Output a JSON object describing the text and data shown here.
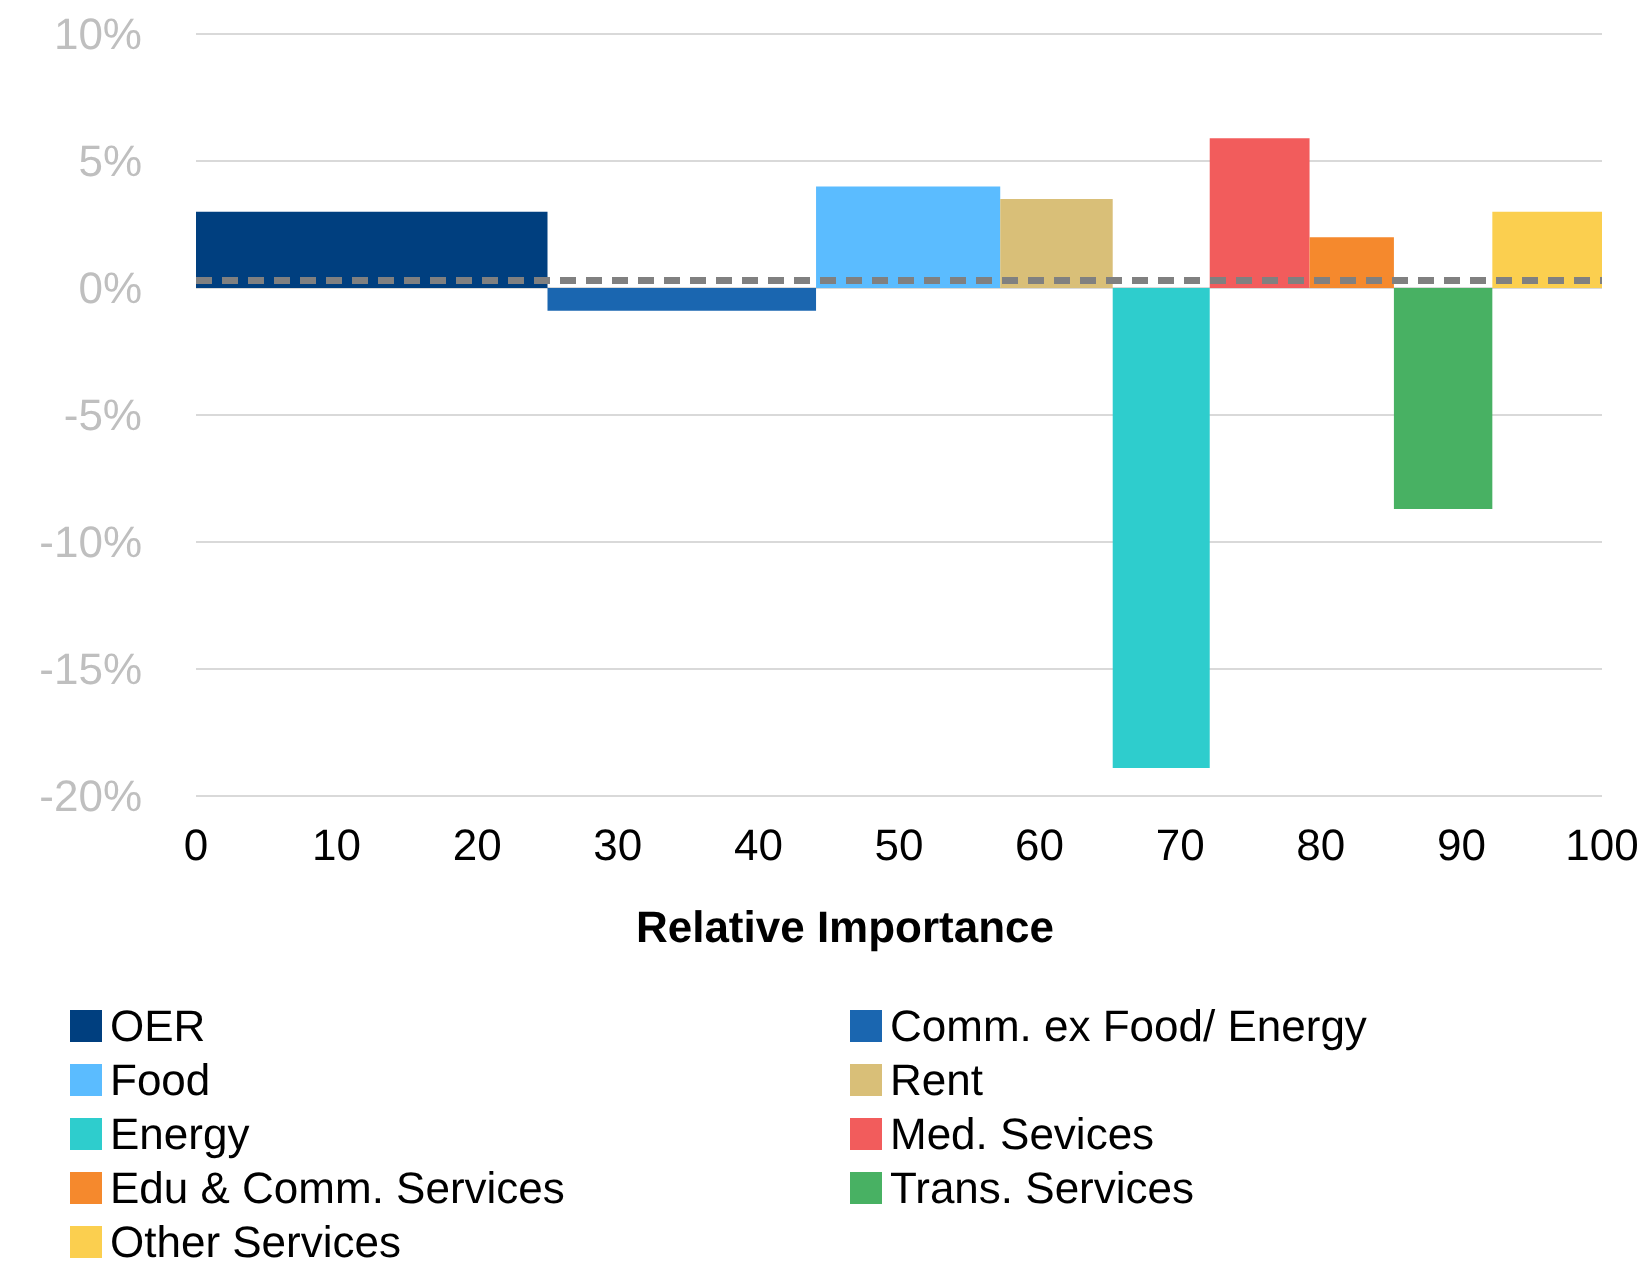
{
  "chart_data": {
    "type": "area",
    "xlabel": "Relative Importance",
    "xlim": [
      0,
      100
    ],
    "xticks": [
      0,
      10,
      20,
      30,
      40,
      50,
      60,
      70,
      80,
      90,
      100
    ],
    "ylim": [
      -20,
      10
    ],
    "yticks": [
      {
        "value": -20,
        "label": "-20%"
      },
      {
        "value": -15,
        "label": "-15%"
      },
      {
        "value": -10,
        "label": "-10%"
      },
      {
        "value": -5,
        "label": "-5%"
      },
      {
        "value": 0,
        "label": "0%"
      },
      {
        "value": 5,
        "label": "5%"
      },
      {
        "value": 10,
        "label": "10%"
      }
    ],
    "grid": "y",
    "legend": "bottom",
    "ref_lines": [
      {
        "axis": "y",
        "value": 0.3,
        "color": "#808080",
        "line_style": "dashed"
      }
    ],
    "series": [
      {
        "name": "OER",
        "color": "#003f7f",
        "x": [
          0,
          25
        ],
        "values": [
          3,
          3
        ]
      },
      {
        "name": "Comm. ex  Food/  Energy",
        "color": "#1a66b0",
        "x": [
          25,
          44.1
        ],
        "values": [
          -0.9,
          -0.9
        ]
      },
      {
        "name": "Food",
        "color": "#5bbcff",
        "x": [
          44.1,
          57.2
        ],
        "values": [
          4,
          4
        ]
      },
      {
        "name": "Rent",
        "color": "#d9bf78",
        "x": [
          57.2,
          65.2
        ],
        "values": [
          3.5,
          3.5
        ]
      },
      {
        "name": "Energy",
        "color": "#2ecdcd",
        "x": [
          65.2,
          72.1
        ],
        "values": [
          -18.9,
          -18.9
        ]
      },
      {
        "name": "Med. Sevices",
        "color": "#f25c5c",
        "x": [
          72.1,
          79.2
        ],
        "values": [
          5.9,
          5.9
        ]
      },
      {
        "name": "Edu & Comm. Services",
        "color": "#f5892d",
        "x": [
          79.2,
          85.2
        ],
        "values": [
          2,
          2
        ]
      },
      {
        "name": "Trans. Services",
        "color": "#48b163",
        "x": [
          85.2,
          92.2
        ],
        "values": [
          -8.7,
          -8.7
        ]
      },
      {
        "name": "Other Services",
        "color": "#fbcf4f",
        "x": [
          92.2,
          100
        ],
        "values": [
          3,
          3
        ]
      }
    ]
  }
}
